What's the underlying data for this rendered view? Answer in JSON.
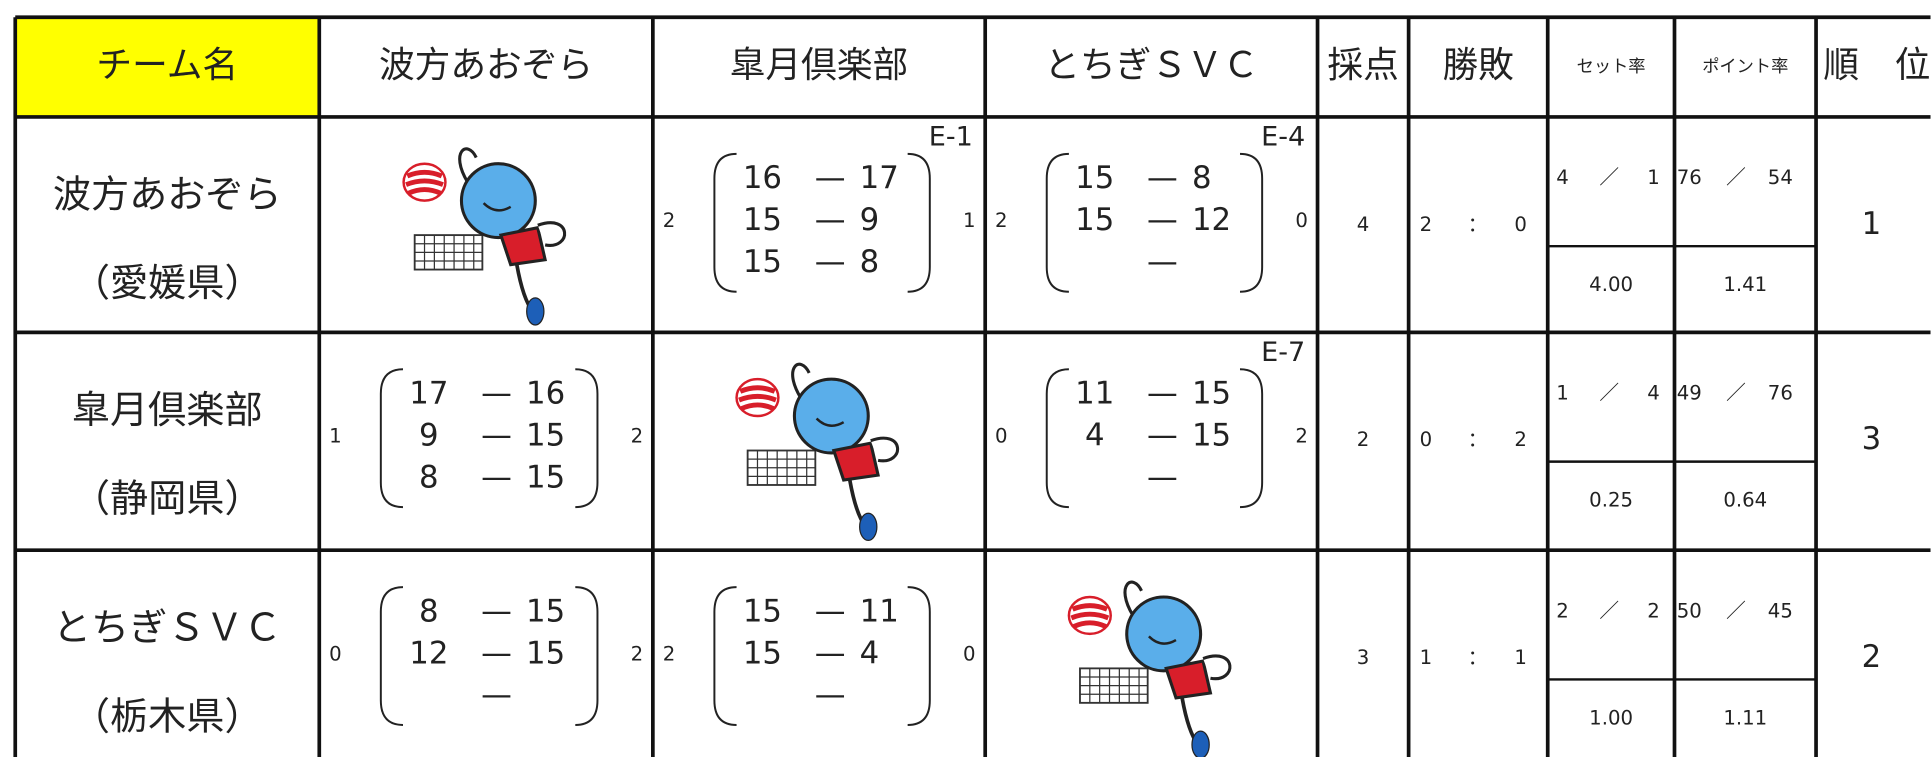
{
  "dash": "—",
  "sep": "／",
  "colon": "：",
  "header": [
    "チーム名",
    "波方あおぞら",
    "皐月倶楽部",
    "とちぎＳＶＣ",
    "採点",
    "勝敗",
    "セット率",
    "ポイント率",
    "順　位"
  ],
  "rows": [
    {
      "team": "波方あおぞら",
      "pref": "（愛媛県）",
      "matches": [
        null,
        {
          "left": "2",
          "right": "1",
          "code": "E-1",
          "sets": [
            [
              "16",
              "17"
            ],
            [
              "15",
              "9"
            ],
            [
              "15",
              "8"
            ]
          ]
        },
        {
          "left": "2",
          "right": "0",
          "code": "E-4",
          "sets": [
            [
              "15",
              "8"
            ],
            [
              "15",
              "12"
            ]
          ]
        }
      ],
      "points": "4",
      "wins": "2",
      "losses": "0",
      "set_won": "4",
      "set_lost": "1",
      "set_ratio": "4.00",
      "pt_won": "76",
      "pt_lost": "54",
      "pt_ratio": "1.41",
      "rank": "1"
    },
    {
      "team": "皐月倶楽部",
      "pref": "（静岡県）",
      "matches": [
        {
          "left": "1",
          "right": "2",
          "sets": [
            [
              "17",
              "16"
            ],
            [
              "9",
              "15"
            ],
            [
              "8",
              "15"
            ]
          ]
        },
        null,
        {
          "left": "0",
          "right": "2",
          "code": "E-7",
          "sets": [
            [
              "11",
              "15"
            ],
            [
              "4",
              "15"
            ]
          ]
        }
      ],
      "points": "2",
      "wins": "0",
      "losses": "2",
      "set_won": "1",
      "set_lost": "4",
      "set_ratio": "0.25",
      "pt_won": "49",
      "pt_lost": "76",
      "pt_ratio": "0.64",
      "rank": "3"
    },
    {
      "team": "とちぎＳＶＣ",
      "pref": "（栃木県）",
      "matches": [
        {
          "left": "0",
          "right": "2",
          "sets": [
            [
              "8",
              "15"
            ],
            [
              "12",
              "15"
            ]
          ]
        },
        {
          "left": "2",
          "right": "0",
          "sets": [
            [
              "15",
              "11"
            ],
            [
              "15",
              "4"
            ]
          ]
        },
        null
      ],
      "points": "3",
      "wins": "1",
      "losses": "1",
      "set_won": "2",
      "set_lost": "2",
      "set_ratio": "1.00",
      "pt_won": "50",
      "pt_lost": "45",
      "pt_ratio": "1.11",
      "rank": "2"
    }
  ]
}
